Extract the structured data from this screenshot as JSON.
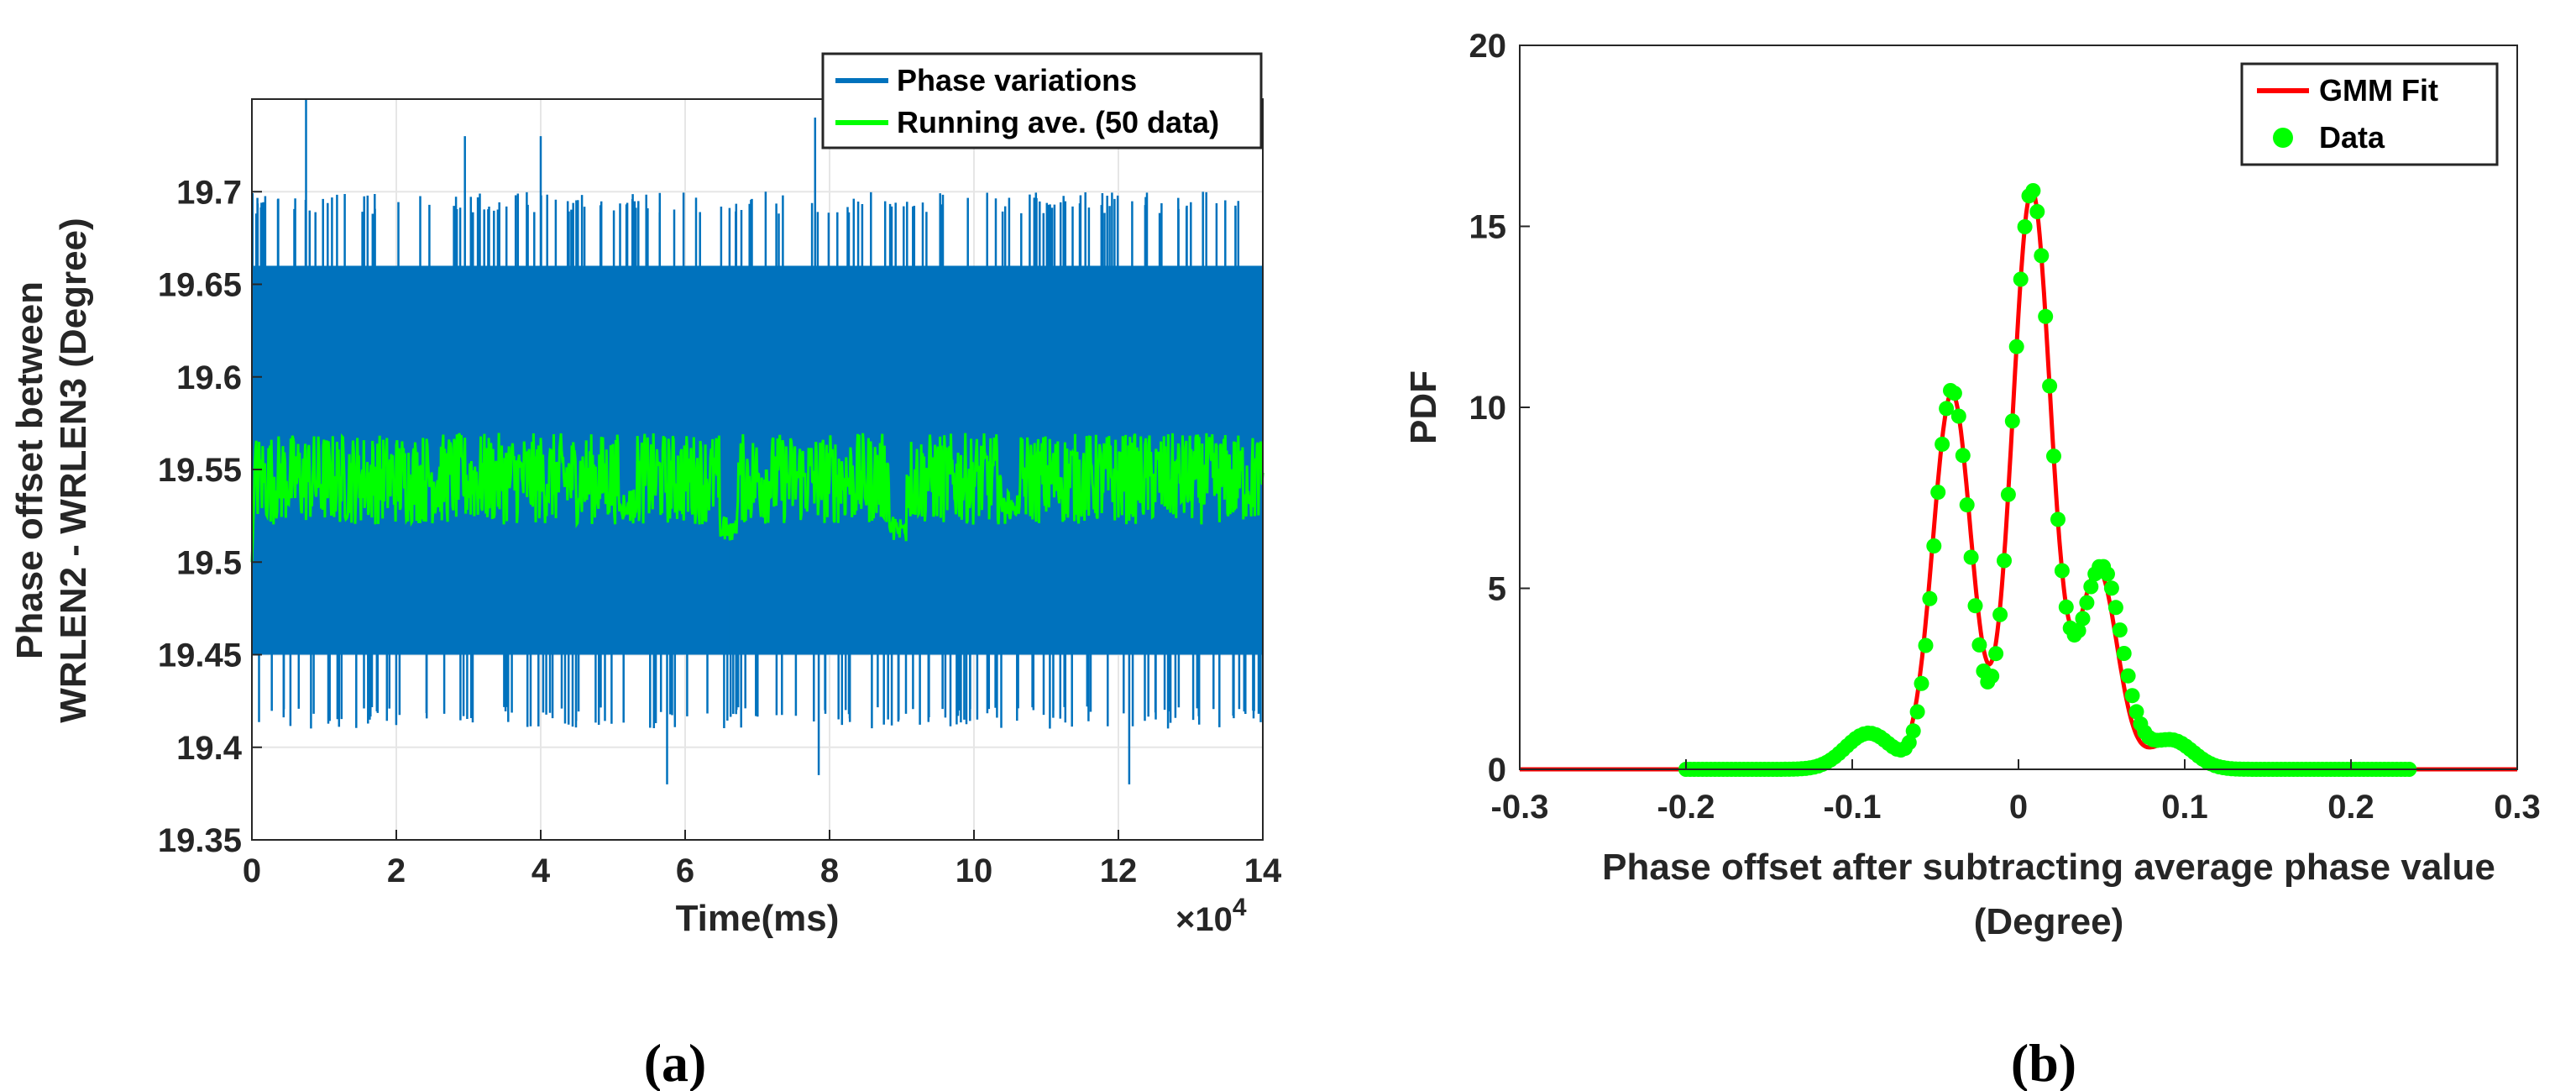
{
  "colors": {
    "phase": "#0072BD",
    "running": "#00FF00",
    "fit": "#FF0000",
    "data": "#00FF00",
    "grid": "#E6E6E6",
    "axis": "#262626"
  },
  "chart_data": [
    {
      "type": "line",
      "caption": "(a)",
      "xlabel": "Time(ms)",
      "ylabel": [
        "Phase offset between",
        "WRLEN2 - WRLEN3 (Degree)"
      ],
      "x_exponent": "×10",
      "x_exponent_power": "4",
      "xlim": [
        0,
        14
      ],
      "ylim": [
        19.35,
        19.75
      ],
      "xticks": [
        0,
        2,
        4,
        6,
        8,
        10,
        12,
        14
      ],
      "xtick_labels": [
        "0",
        "2",
        "4",
        "6",
        "8",
        "10",
        "12",
        "14"
      ],
      "yticks": [
        19.35,
        19.4,
        19.45,
        19.5,
        19.55,
        19.6,
        19.65,
        19.7
      ],
      "ytick_labels": [
        "19.35",
        "19.4",
        "19.45",
        "19.5",
        "19.55",
        "19.6",
        "19.65",
        "19.7"
      ],
      "grid": true,
      "legend_position": "top-right",
      "series": [
        {
          "name": "Phase variations",
          "color_key": "phase",
          "band_min": 19.45,
          "band_max": 19.66,
          "spike_high": 19.7,
          "spike_low": 19.41,
          "outliers": [
            [
              0.75,
              19.75
            ],
            [
              2.95,
              19.73
            ],
            [
              4.0,
              19.73
            ],
            [
              5.75,
              19.38
            ],
            [
              6.6,
              19.565
            ],
            [
              7.8,
              19.74
            ],
            [
              7.85,
              19.385
            ],
            [
              12.15,
              19.38
            ]
          ]
        },
        {
          "name": "Running ave. (50 data)",
          "color_key": "running",
          "start": 19.5,
          "band_min": 19.52,
          "band_max": 19.575,
          "mean": 19.545,
          "dips": [
            [
              5.2,
              19.525
            ],
            [
              6.6,
              19.51
            ],
            [
              8.95,
              19.51
            ],
            [
              10.5,
              19.525
            ]
          ]
        }
      ]
    },
    {
      "type": "line",
      "caption": "(b)",
      "xlabel": [
        "Phase offset after subtracting average phase value",
        "(Degree)"
      ],
      "ylabel": "PDF",
      "xlim": [
        -0.3,
        0.3
      ],
      "ylim": [
        0,
        20
      ],
      "xticks": [
        -0.3,
        -0.2,
        -0.1,
        0,
        0.1,
        0.2,
        0.3
      ],
      "xtick_labels": [
        "-0.3",
        "-0.2",
        "-0.1",
        "0",
        "0.1",
        "0.2",
        "0.3"
      ],
      "yticks": [
        0,
        5,
        10,
        15,
        20
      ],
      "ytick_labels": [
        "0",
        "5",
        "10",
        "15",
        "20"
      ],
      "grid": false,
      "legend_position": "top-right",
      "series": [
        {
          "name": "GMM Fit",
          "color_key": "fit",
          "style": "line",
          "components": [
            {
              "mu": -0.09,
              "sigma": 0.012,
              "amp": 0.9
            },
            {
              "mu": -0.04,
              "sigma": 0.0115,
              "amp": 10.4
            },
            {
              "mu": 0.008,
              "sigma": 0.0115,
              "amp": 16.0
            },
            {
              "mu": 0.048,
              "sigma": 0.0115,
              "amp": 5.5
            },
            {
              "mu": 0.09,
              "sigma": 0.012,
              "amp": 0.7
            }
          ]
        },
        {
          "name": "Data",
          "color_key": "data",
          "style": "markers",
          "x_range": [
            -0.2,
            0.235
          ],
          "components": [
            {
              "mu": -0.09,
              "sigma": 0.014,
              "amp": 1.0
            },
            {
              "mu": -0.04,
              "sigma": 0.0105,
              "amp": 10.5
            },
            {
              "mu": 0.008,
              "sigma": 0.0115,
              "amp": 16.0
            },
            {
              "mu": 0.05,
              "sigma": 0.0125,
              "amp": 5.6
            },
            {
              "mu": 0.092,
              "sigma": 0.013,
              "amp": 0.8
            }
          ]
        }
      ]
    }
  ]
}
